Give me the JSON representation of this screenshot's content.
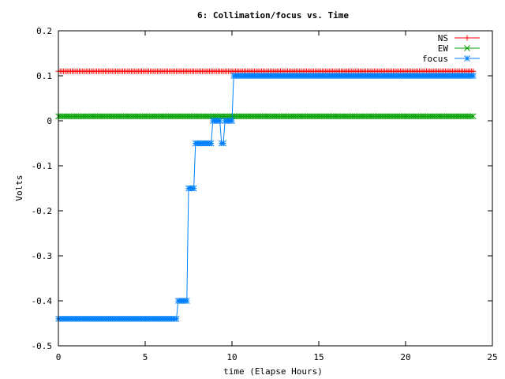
{
  "chart_data": {
    "type": "line",
    "title": "6: Collimation/focus vs. Time",
    "xlabel": "time (Elapse Hours)",
    "ylabel": "Volts",
    "xlim": [
      0,
      25
    ],
    "ylim": [
      -0.5,
      0.2
    ],
    "x_ticks": [
      0,
      5,
      10,
      15,
      20,
      25
    ],
    "y_ticks": [
      -0.5,
      -0.4,
      -0.3,
      -0.2,
      -0.1,
      0,
      0.1,
      0.2
    ],
    "x_tick_labels": [
      "0",
      "5",
      "10",
      "15",
      "20",
      "25"
    ],
    "y_tick_labels": [
      "-0.5",
      "-0.4",
      "-0.3",
      "-0.2",
      "-0.1",
      "0",
      "0.1",
      "0.2"
    ],
    "grid": false,
    "legend_position": "top-right",
    "series": [
      {
        "name": "NS",
        "color": "#ff0000",
        "marker": "plus",
        "sample_step": 0.1,
        "segments": [
          {
            "x_from": 0,
            "x_to": 23.9,
            "y": 0.11
          }
        ]
      },
      {
        "name": "EW",
        "color": "#00a000",
        "marker": "cross",
        "sample_step": 0.1,
        "segments": [
          {
            "x_from": 0,
            "x_to": 23.9,
            "y": 0.01
          }
        ]
      },
      {
        "name": "focus",
        "color": "#0080ff",
        "marker": "star",
        "sample_step": 0.1,
        "segments": [
          {
            "x_from": 0,
            "x_to": 6.8,
            "y": -0.44
          },
          {
            "x_from": 6.9,
            "x_to": 7.4,
            "y": -0.4
          },
          {
            "x_from": 7.5,
            "x_to": 7.8,
            "y": -0.15
          },
          {
            "x_from": 7.9,
            "x_to": 8.8,
            "y": -0.05
          },
          {
            "x_from": 8.9,
            "x_to": 9.3,
            "y": 0.0
          },
          {
            "x_from": 9.4,
            "x_to": 9.5,
            "y": -0.05
          },
          {
            "x_from": 9.6,
            "x_to": 10.0,
            "y": 0.0
          },
          {
            "x_from": 10.1,
            "x_to": 23.9,
            "y": 0.1
          }
        ]
      }
    ]
  }
}
